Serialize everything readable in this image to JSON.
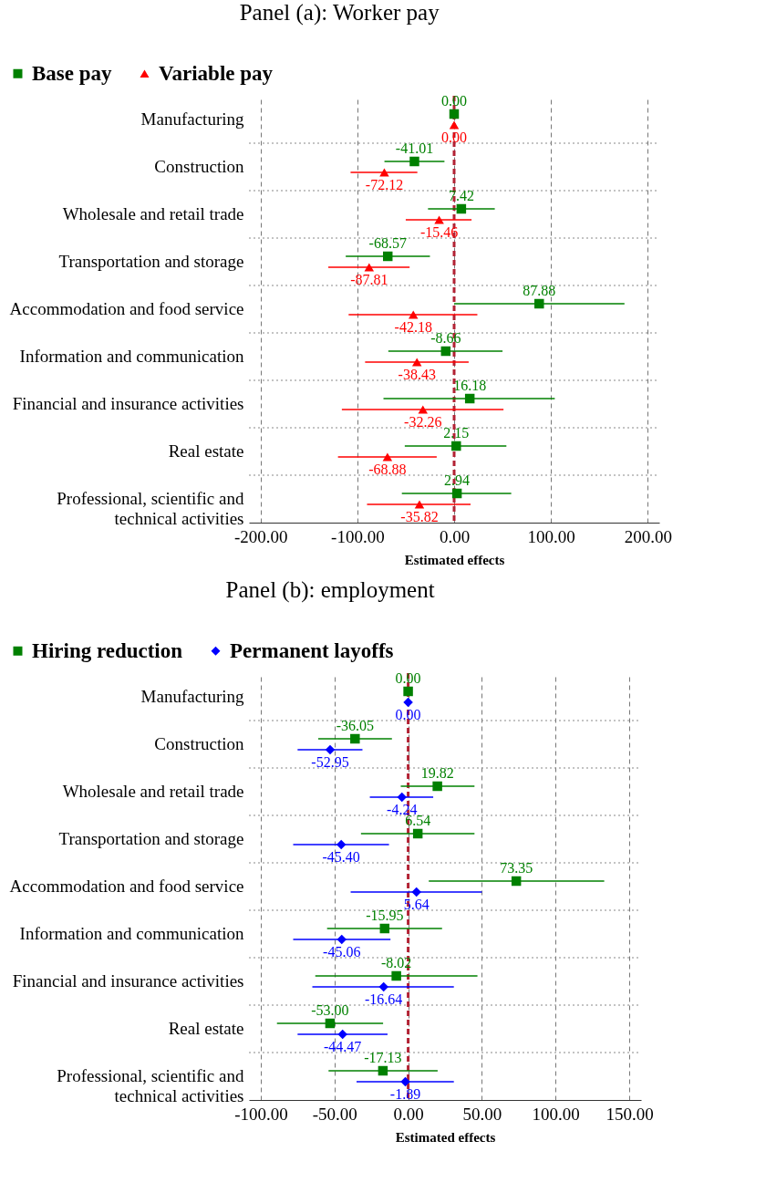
{
  "chart_data": [
    {
      "type": "scatter",
      "title": "Panel (a): Worker pay",
      "orientation": "horizontal",
      "xlabel": "Estimated effects",
      "categories": [
        "Manufacturing",
        "Construction",
        "Wholesale and retail trade",
        "Transportation and storage",
        "Accommodation and food service",
        "Information and communication",
        "Financial and insurance activities",
        "Real estate",
        "Professional, scientific and technical activities"
      ],
      "series": [
        {
          "name": "Base pay",
          "color": "#008000",
          "marker": "square",
          "values": [
            0,
            -41.01,
            7.42,
            -68.57,
            87.88,
            -8.66,
            16.18,
            2.15,
            2.94
          ],
          "value_labels": [
            "0.00",
            "-41.01",
            "7.42",
            "-68.57",
            "87.88",
            "-8.66",
            "16.18",
            "2.15",
            "2.94"
          ],
          "errors": [
            null,
            [
              -72,
              -10
            ],
            [
              -27,
              42
            ],
            [
              -112,
              -25
            ],
            [
              0,
              176
            ],
            [
              -68,
              50
            ],
            [
              -73,
              104
            ],
            [
              -51,
              54
            ],
            [
              -54,
              59
            ]
          ]
        },
        {
          "name": "Variable pay",
          "color": "#ff0000",
          "marker": "triangle",
          "values": [
            0,
            -72.12,
            -15.46,
            -87.81,
            -42.18,
            -38.43,
            -32.26,
            -68.88,
            -35.82
          ],
          "value_labels": [
            "0.00",
            "-72.12",
            "-15.46",
            "-87.81",
            "-42.18",
            "-38.43",
            "-32.26",
            "-68.88",
            "-35.82"
          ],
          "errors": [
            null,
            [
              -107,
              -38
            ],
            [
              -50,
              18
            ],
            [
              -130,
              -46
            ],
            [
              -109,
              24
            ],
            [
              -92,
              15
            ],
            [
              -116,
              51
            ],
            [
              -120,
              -18
            ],
            [
              -90,
              17
            ]
          ]
        }
      ],
      "xlim": [
        -212,
        212
      ],
      "xticks": [
        {
          "value": -200,
          "label": "-200.00"
        },
        {
          "value": -100,
          "label": "-100.00"
        },
        {
          "value": 0,
          "label": "0.00"
        },
        {
          "value": 100,
          "label": "100.00"
        },
        {
          "value": 200,
          "label": "200.00"
        }
      ],
      "ref_lines": [
        {
          "axis": "x",
          "value": 0,
          "color": "#b22234",
          "line_style": "dashed"
        }
      ],
      "grid": true,
      "legend": "top left"
    },
    {
      "type": "scatter",
      "title": "Panel (b): employment",
      "orientation": "horizontal",
      "xlabel": "Estimated effects",
      "categories": [
        "Manufacturing",
        "Construction",
        "Wholesale and retail trade",
        "Transportation and storage",
        "Accommodation and food service",
        "Information and communication",
        "Financial and insurance activities",
        "Real estate",
        "Professional, scientific and technical activities"
      ],
      "series": [
        {
          "name": "Hiring reduction",
          "color": "#008000",
          "marker": "square",
          "values": [
            0,
            -36.05,
            19.82,
            6.54,
            73.35,
            -15.95,
            -8.02,
            -53.0,
            -17.13
          ],
          "value_labels": [
            "0.00",
            "-36.05",
            "19.82",
            "6.54",
            "73.35",
            "-15.95",
            "-8.02",
            "-53.00",
            "-17.13"
          ],
          "errors": [
            null,
            [
              -61,
              -11
            ],
            [
              -5,
              45
            ],
            [
              -32,
              45
            ],
            [
              14,
              133
            ],
            [
              -55,
              23
            ],
            [
              -63,
              47
            ],
            [
              -89,
              -17
            ],
            [
              -54,
              20
            ]
          ]
        },
        {
          "name": "Permanent layoffs",
          "color": "#0000ff",
          "marker": "diamond",
          "values": [
            0,
            -52.95,
            -4.24,
            -45.4,
            5.64,
            -45.06,
            -16.64,
            -44.47,
            -1.89
          ],
          "value_labels": [
            "0.00",
            "-52.95",
            "-4.24",
            "-45.40",
            "5.64",
            "-45.06",
            "-16.64",
            "-44.47",
            "-1.89"
          ],
          "errors": [
            null,
            [
              -75,
              -31
            ],
            [
              -26,
              17
            ],
            [
              -78,
              -13
            ],
            [
              -39,
              50
            ],
            [
              -78,
              -12
            ],
            [
              -65,
              31
            ],
            [
              -75,
              -14
            ],
            [
              -35,
              31
            ]
          ]
        }
      ],
      "xlim": [
        -108,
        158
      ],
      "xticks": [
        {
          "value": -100,
          "label": "-100.00"
        },
        {
          "value": -50,
          "label": "-50.00"
        },
        {
          "value": 0,
          "label": "0.00"
        },
        {
          "value": 50,
          "label": "50.00"
        },
        {
          "value": 100,
          "label": "100.00"
        },
        {
          "value": 150,
          "label": "150.00"
        }
      ],
      "ref_lines": [
        {
          "axis": "x",
          "value": 0,
          "color": "#b22234",
          "line_style": "dashed"
        }
      ],
      "grid": true,
      "legend": "top left"
    }
  ]
}
